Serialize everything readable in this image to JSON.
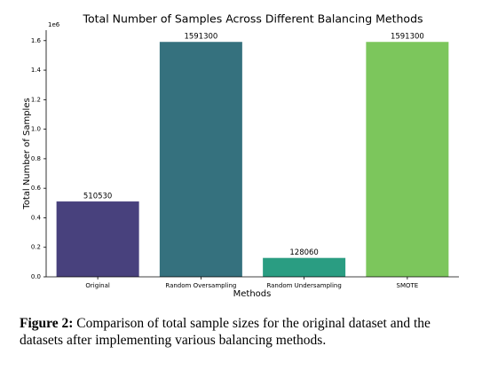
{
  "chart_data": {
    "type": "bar",
    "title": "Total Number of Samples Across Different Balancing Methods",
    "x_label": "Methods",
    "y_label": "Total Number of Samples",
    "y_offset_label": "1e6",
    "categories": [
      "Original",
      "Random Oversampling",
      "Random Undersampling",
      "SMOTE"
    ],
    "values": [
      510530,
      1591300,
      128060,
      1591300
    ],
    "colors": [
      "#48417d",
      "#35717e",
      "#2a9d82",
      "#7cc65c"
    ],
    "ylim": [
      0,
      1670865
    ],
    "yticks": [
      {
        "value": 0,
        "label": "0.0"
      },
      {
        "value": 200000,
        "label": "0.2"
      },
      {
        "value": 400000,
        "label": "0.4"
      },
      {
        "value": 600000,
        "label": "0.6"
      },
      {
        "value": 800000,
        "label": "0.8"
      },
      {
        "value": 1000000,
        "label": "1.0"
      },
      {
        "value": 1200000,
        "label": "1.2"
      },
      {
        "value": 1400000,
        "label": "1.4"
      },
      {
        "value": 1600000,
        "label": "1.6"
      }
    ],
    "grid": false
  },
  "caption": {
    "label": "Figure 2:",
    "text": "Comparison of total sample sizes for the original dataset and the datasets after implementing various balancing methods."
  }
}
